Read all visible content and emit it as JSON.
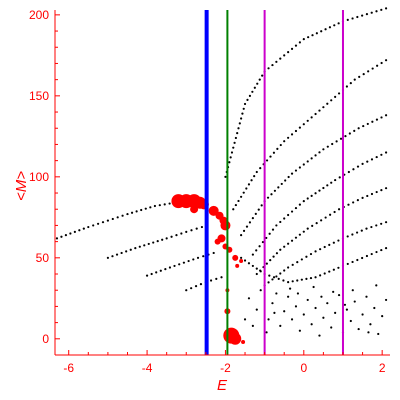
{
  "chart_data": {
    "type": "scatter",
    "title": "",
    "xlabel": "E",
    "ylabel": "<M>",
    "xlim": [
      -6.35,
      2.2
    ],
    "ylim": [
      -10,
      203
    ],
    "xticks": [
      -6,
      -4,
      -2,
      0,
      2
    ],
    "yticks": [
      0,
      50,
      100,
      150,
      200
    ],
    "grid": false,
    "legend": "none",
    "axis_color": "#ff0000",
    "vertical_lines": [
      {
        "x": -2.48,
        "color": "#0000ff",
        "style": "thick"
      },
      {
        "x": -1.95,
        "color": "#008000",
        "style": "thin"
      },
      {
        "x": -1.0,
        "color": "#cc00cc",
        "style": "thin"
      },
      {
        "x": 1.0,
        "color": "#cc00cc",
        "style": "thin"
      }
    ],
    "series": [
      {
        "color": "#000000",
        "marker": "dot",
        "kind": "branch",
        "points": [
          [
            -6.3,
            62
          ],
          [
            -5.5,
            69
          ],
          [
            -4.5,
            77
          ],
          [
            -3.8,
            82
          ],
          [
            -3.3,
            84
          ]
        ]
      },
      {
        "color": "#000000",
        "marker": "dot",
        "kind": "branch",
        "points": [
          [
            -5.0,
            50
          ],
          [
            -4.3,
            56
          ],
          [
            -3.5,
            62
          ],
          [
            -3.0,
            66
          ],
          [
            -2.6,
            69
          ]
        ]
      },
      {
        "color": "#000000",
        "marker": "dot",
        "kind": "branch",
        "points": [
          [
            -4.0,
            39
          ],
          [
            -3.3,
            45
          ],
          [
            -2.7,
            50
          ],
          [
            -2.3,
            53
          ]
        ]
      },
      {
        "color": "#000000",
        "marker": "dot",
        "kind": "branch",
        "points": [
          [
            -3.0,
            30
          ],
          [
            -2.5,
            35
          ],
          [
            -2.1,
            38
          ]
        ]
      },
      {
        "color": "#000000",
        "marker": "dot",
        "kind": "branch",
        "points": [
          [
            -2.0,
            100
          ],
          [
            -1.5,
            145
          ],
          [
            -1.0,
            165
          ],
          [
            0.0,
            185
          ],
          [
            1.0,
            196
          ],
          [
            2.1,
            204
          ]
        ]
      },
      {
        "color": "#000000",
        "marker": "dot",
        "kind": "branch",
        "points": [
          [
            -1.8,
            80
          ],
          [
            -1.2,
            103
          ],
          [
            -0.5,
            122
          ],
          [
            0.5,
            143
          ],
          [
            1.3,
            160
          ],
          [
            2.1,
            172
          ]
        ]
      },
      {
        "color": "#000000",
        "marker": "dot",
        "kind": "branch",
        "points": [
          [
            -1.6,
            64
          ],
          [
            -1.0,
            85
          ],
          [
            -0.3,
            102
          ],
          [
            0.5,
            117
          ],
          [
            1.4,
            130
          ],
          [
            2.1,
            138
          ]
        ]
      },
      {
        "color": "#000000",
        "marker": "dot",
        "kind": "branch",
        "points": [
          [
            -1.3,
            52
          ],
          [
            -0.7,
            70
          ],
          [
            0.0,
            85
          ],
          [
            0.8,
            98
          ],
          [
            1.5,
            108
          ],
          [
            2.1,
            115
          ]
        ]
      },
      {
        "color": "#000000",
        "marker": "dot",
        "kind": "branch",
        "points": [
          [
            -1.2,
            40
          ],
          [
            -0.6,
            55
          ],
          [
            0.1,
            68
          ],
          [
            0.9,
            80
          ],
          [
            1.5,
            87
          ],
          [
            2.1,
            93
          ]
        ]
      },
      {
        "color": "#000000",
        "marker": "dot",
        "kind": "branch",
        "points": [
          [
            -1.0,
            33
          ],
          [
            -0.4,
            44
          ],
          [
            0.3,
            54
          ],
          [
            1.0,
            62
          ],
          [
            1.6,
            68
          ],
          [
            2.1,
            72
          ]
        ]
      },
      {
        "color": "#000000",
        "marker": "dot",
        "kind": "branch",
        "points": [
          [
            -1.6,
            50
          ],
          [
            -1.0,
            40
          ],
          [
            -0.4,
            35
          ],
          [
            0.3,
            38
          ],
          [
            1.0,
            45
          ],
          [
            2.1,
            56
          ]
        ]
      },
      {
        "color": "#000000",
        "marker": "dot",
        "kind": "cloud",
        "points": [
          [
            -1.4,
            25
          ],
          [
            -1.2,
            18
          ],
          [
            -1.1,
            30
          ],
          [
            -0.9,
            12
          ],
          [
            -0.8,
            22
          ],
          [
            -0.7,
            28
          ],
          [
            -0.6,
            8
          ],
          [
            -0.5,
            17
          ],
          [
            -0.4,
            26
          ],
          [
            -0.3,
            12
          ],
          [
            -0.2,
            20
          ],
          [
            -0.1,
            5
          ],
          [
            0.0,
            15
          ],
          [
            0.1,
            24
          ],
          [
            0.2,
            9
          ],
          [
            0.3,
            19
          ],
          [
            0.4,
            2
          ],
          [
            0.5,
            13
          ],
          [
            0.6,
            22
          ],
          [
            0.7,
            7
          ],
          [
            0.8,
            16
          ],
          [
            0.9,
            27
          ],
          [
            1.0,
            4
          ],
          [
            1.1,
            18
          ],
          [
            1.2,
            11
          ],
          [
            1.3,
            23
          ],
          [
            1.4,
            6
          ],
          [
            1.5,
            15
          ],
          [
            1.6,
            26
          ],
          [
            1.7,
            9
          ],
          [
            1.8,
            19
          ],
          [
            1.9,
            3
          ],
          [
            2.0,
            14
          ],
          [
            2.1,
            24
          ],
          [
            -0.95,
            4
          ],
          [
            -0.35,
            31
          ],
          [
            0.25,
            32
          ],
          [
            0.75,
            29
          ],
          [
            1.25,
            30
          ],
          [
            1.85,
            33
          ],
          [
            -1.5,
            12
          ],
          [
            -1.3,
            8
          ],
          [
            -0.75,
            16
          ],
          [
            -0.15,
            28
          ],
          [
            0.45,
            26
          ],
          [
            1.05,
            21
          ],
          [
            1.65,
            4
          ],
          [
            -1.7,
            2
          ]
        ]
      },
      {
        "color": "#ff0000",
        "marker": "disk",
        "kind": "states",
        "points": [
          [
            -3.2,
            85
          ],
          [
            -3.0,
            85
          ],
          [
            -2.8,
            85
          ],
          [
            -2.65,
            84
          ],
          [
            -2.55,
            83
          ],
          [
            -2.3,
            79
          ],
          [
            -2.15,
            76
          ],
          [
            -2.05,
            73
          ],
          [
            -2.0,
            70
          ],
          [
            -2.1,
            62
          ],
          [
            -2.0,
            57
          ],
          [
            -1.9,
            55
          ],
          [
            -1.75,
            50
          ],
          [
            -1.6,
            48
          ],
          [
            -1.85,
            2
          ],
          [
            -1.75,
            0
          ],
          [
            -1.95,
            17
          ],
          [
            -1.55,
            -2
          ],
          [
            -1.95,
            30
          ],
          [
            -2.2,
            60
          ],
          [
            -2.8,
            80
          ],
          [
            -1.7,
            45
          ]
        ],
        "sizes": [
          7,
          7,
          7,
          6,
          5,
          5,
          4,
          4,
          5,
          4,
          3,
          3,
          3,
          2,
          8,
          6,
          3,
          2,
          2,
          3,
          4,
          2
        ]
      }
    ]
  }
}
